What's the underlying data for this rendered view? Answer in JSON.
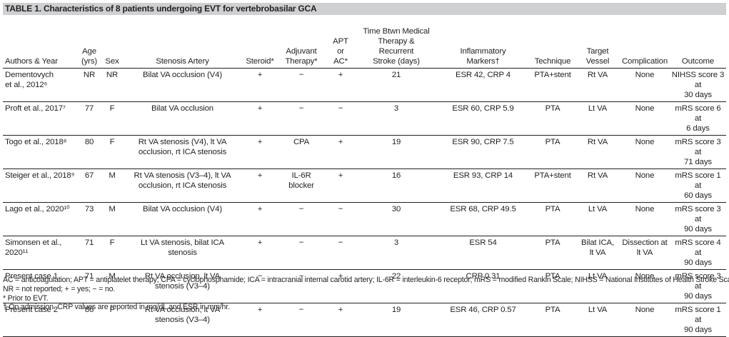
{
  "title": "TABLE 1. Characteristics of 8 patients undergoing EVT for vertebrobasilar GCA",
  "columns": [
    "Authors & Year",
    "Age\n(yrs)",
    "Sex",
    "Stenosis Artery",
    "Steroid*",
    "Adjuvant\nTherapy*",
    "APT\nor\nAC*",
    "Time Btwn Medical\nTherapy &\nRecurrent\nStroke (days)",
    "Inflammatory\nMarkers†",
    "Technique",
    "Target\nVessel",
    "Complication",
    "Outcome"
  ],
  "rows": [
    [
      "Dementovych\net al., 2012⁶",
      "NR",
      "NR",
      "Bilat VA occlusion (V4)",
      "+",
      "−",
      "+",
      "21",
      "ESR 42, CRP 4",
      "PTA+stent",
      "Rt VA",
      "None",
      "NIHSS score 3 at\n30 days"
    ],
    [
      "Proft et al., 2017⁷",
      "77",
      "F",
      "Bilat VA occlusion",
      "+",
      "−",
      "−",
      "3",
      "ESR 60, CRP 5.9",
      "PTA",
      "Lt VA",
      "None",
      "mRS score 6 at\n6 days"
    ],
    [
      "Togo et al., 2018⁸",
      "80",
      "F",
      "Rt VA stenosis (V4), lt VA\nocclusion, rt ICA stenosis",
      "+",
      "CPA",
      "+",
      "19",
      "ESR 90, CRP 7.5",
      "PTA",
      "Rt VA",
      "None",
      "mRS score 3 at\n71 days"
    ],
    [
      "Steiger et al., 2018⁹",
      "67",
      "M",
      "Rt VA stenosis (V3–4), lt VA\nocclusion, rt ICA stenosis",
      "+",
      "IL-6R\nblocker",
      "+",
      "16",
      "ESR 93, CRP 14",
      "PTA+stent",
      "Rt VA",
      "None",
      "mRS score 1 at\n60 days"
    ],
    [
      "Lago et al., 2020¹⁰",
      "73",
      "M",
      "Bilat VA occlusion (V4)",
      "+",
      "−",
      "−",
      "30",
      "ESR 68, CRP 49.5",
      "PTA",
      "Lt VA",
      "None",
      "mRS score 3 at\n90 days"
    ],
    [
      "Simonsen et al.,\n2020¹¹",
      "71",
      "F",
      "Lt VA stenosis, bilat ICA\nstenosis",
      "+",
      "−",
      "−",
      "3",
      "ESR 54",
      "PTA",
      "Bilat ICA,\nlt VA",
      "Dissection at\nlt VA",
      "mRS score 4 at\n90 days"
    ],
    [
      "Present case 1",
      "71",
      "M",
      "Rt VA occlusion, lt VA\nstenosis (V3–4)",
      "−",
      "−",
      "+",
      "22",
      "CRP 0.31",
      "PTA",
      "Lt VA",
      "None",
      "mRS score 3 at\n90 days"
    ],
    [
      "Present case 2",
      "86",
      "F",
      "Rt VA occlusion, lt VA\nstenosis (V3–4)",
      "+",
      "−",
      "+",
      "19",
      "ESR 46, CRP 0.57",
      "PTA",
      "Lt VA",
      "None",
      "mRS score 1 at\n90 days"
    ]
  ],
  "footnotes": [
    "AC = anticoagulation; APT = antiplatelet therapy; CPA = cyclophosphamide; ICA = intracranial internal carotid artery; IL-6R = interleukin-6 receptor; mRS = modified Rankin Scale; NIHSS = National Institutes of Health Stroke Scale;",
    "NR = not reported; + = yes; − = no.",
    "* Prior to EVT.",
    "† On admission. CRP values are reported in mg/dL and ESR in mm/hr."
  ]
}
